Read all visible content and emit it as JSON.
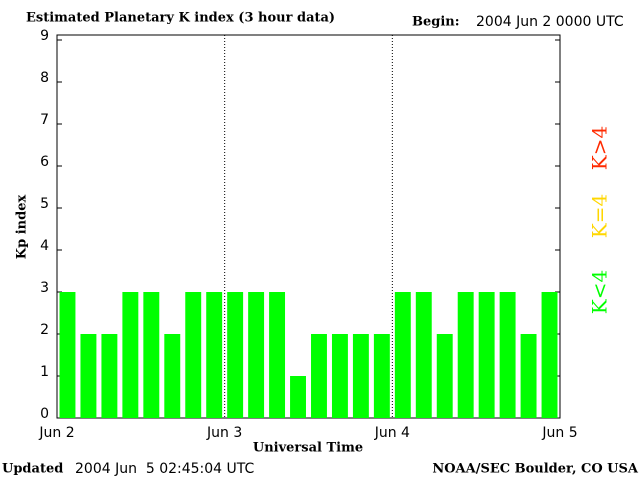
{
  "chart_data": {
    "type": "bar",
    "title": "Estimated Planetary K index (3 hour data)",
    "begin_label": "Begin:",
    "begin": "2004 Jun 2 0000 UTC",
    "ylabel": "Kp index",
    "xlabel": "Universal Time",
    "updated_label": "Updated",
    "updated": "2004 Jun  5 02:45:04 UTC",
    "credit": "NOAA/SEC Boulder, CO USA",
    "xtick_labels": [
      "Jun 2",
      "Jun 3",
      "Jun 4",
      "Jun 5"
    ],
    "values": [
      3,
      2,
      2,
      3,
      3,
      2,
      3,
      3,
      3,
      3,
      3,
      1,
      2,
      2,
      2,
      2,
      3,
      3,
      2,
      3,
      3,
      3,
      2,
      3
    ],
    "ylim": [
      0,
      9
    ],
    "yticks": [
      0,
      1,
      2,
      3,
      4,
      5,
      6,
      7,
      8,
      9
    ],
    "legend": [
      {
        "label": "K<4",
        "color": "#00ff00",
        "threshold": 4
      },
      {
        "label": "K=4",
        "color": "#ffd700"
      },
      {
        "label": "K>4",
        "color": "#ff2a00"
      }
    ]
  }
}
